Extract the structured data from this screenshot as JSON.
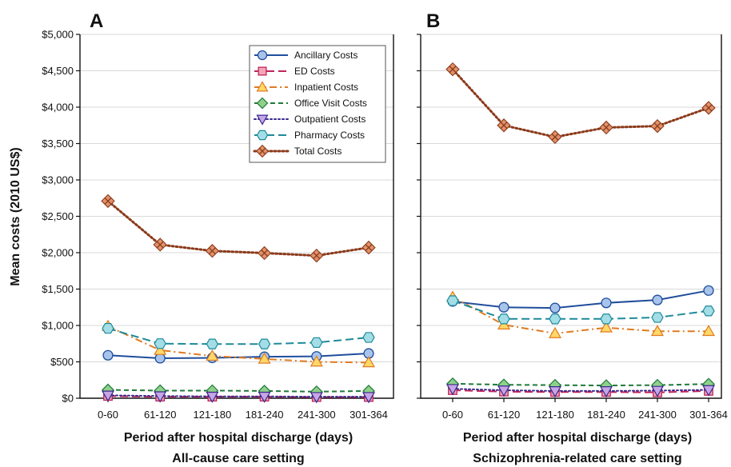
{
  "shared": {
    "ylabel": "Mean costs (2010 US$)",
    "y_ticks": [
      "$0",
      "$500",
      "$1,000",
      "$1,500",
      "$2,000",
      "$2,500",
      "$3,000",
      "$3,500",
      "$4,000",
      "$4,500",
      "$5,000"
    ],
    "series_styles": [
      {
        "name": "Ancillary Costs",
        "color": "#1f4e9c",
        "fill": "#a9c4ea",
        "marker": "circle",
        "dash": "solid"
      },
      {
        "name": "ED Costs",
        "color": "#c0245c",
        "fill": "#f4a6b7",
        "marker": "square",
        "dash": "long-dash"
      },
      {
        "name": "Inpatient Costs",
        "color": "#e07b22",
        "fill": "#ffd868",
        "marker": "triangle-up",
        "dash": "dash-dot"
      },
      {
        "name": "Office Visit Costs",
        "color": "#1f7a3a",
        "fill": "#8fd08a",
        "marker": "diamond",
        "dash": "dashed"
      },
      {
        "name": "Outpatient Costs",
        "color": "#3a2a8c",
        "fill": "#c7a6e6",
        "marker": "triangle-down",
        "dash": "dotted"
      },
      {
        "name": "Pharmacy Costs",
        "color": "#1e8a9a",
        "fill": "#a3dde6",
        "marker": "hexagon",
        "dash": "long-dash"
      },
      {
        "name": "Total Costs",
        "color": "#8b3a1a",
        "fill": "#e0926a",
        "marker": "x-square",
        "dash": "dotted"
      }
    ]
  },
  "chart_data": [
    {
      "type": "line",
      "panel": "A",
      "title": "",
      "xlabel": "Period after hospital discharge (days)",
      "setting": "All-cause care setting",
      "ylabel": "Mean costs (2010 US$)",
      "ylim": [
        0,
        5000
      ],
      "categories": [
        "0-60",
        "61-120",
        "121-180",
        "181-240",
        "241-300",
        "301-364"
      ],
      "legend_position": "top-right",
      "series": [
        {
          "name": "Ancillary Costs",
          "values": [
            590,
            550,
            555,
            570,
            575,
            615
          ]
        },
        {
          "name": "ED Costs",
          "values": [
            30,
            20,
            20,
            20,
            15,
            15
          ]
        },
        {
          "name": "Inpatient Costs",
          "values": [
            990,
            660,
            580,
            540,
            500,
            490
          ]
        },
        {
          "name": "Office Visit Costs",
          "values": [
            115,
            105,
            105,
            100,
            90,
            100
          ]
        },
        {
          "name": "Outpatient Costs",
          "values": [
            40,
            30,
            25,
            25,
            20,
            20
          ]
        },
        {
          "name": "Pharmacy Costs",
          "values": [
            960,
            750,
            745,
            745,
            765,
            835
          ]
        },
        {
          "name": "Total Costs",
          "values": [
            2710,
            2110,
            2025,
            1995,
            1960,
            2070
          ]
        }
      ]
    },
    {
      "type": "line",
      "panel": "B",
      "title": "",
      "xlabel": "Period after hospital discharge (days)",
      "setting": "Schizophrenia-related care setting",
      "ylabel": "",
      "ylim": [
        0,
        5000
      ],
      "categories": [
        "0-60",
        "61-120",
        "121-180",
        "181-240",
        "241-300",
        "301-364"
      ],
      "series": [
        {
          "name": "Ancillary Costs",
          "values": [
            1330,
            1250,
            1240,
            1310,
            1350,
            1480
          ]
        },
        {
          "name": "ED Costs",
          "values": [
            110,
            90,
            85,
            85,
            80,
            100
          ]
        },
        {
          "name": "Inpatient Costs",
          "values": [
            1390,
            1010,
            890,
            970,
            920,
            920
          ]
        },
        {
          "name": "Office Visit Costs",
          "values": [
            200,
            185,
            180,
            175,
            180,
            195
          ]
        },
        {
          "name": "Outpatient Costs",
          "values": [
            130,
            110,
            100,
            100,
            105,
            115
          ]
        },
        {
          "name": "Pharmacy Costs",
          "values": [
            1340,
            1090,
            1090,
            1090,
            1110,
            1200
          ]
        },
        {
          "name": "Total Costs",
          "values": [
            4520,
            3750,
            3590,
            3720,
            3740,
            3990
          ]
        }
      ]
    }
  ]
}
